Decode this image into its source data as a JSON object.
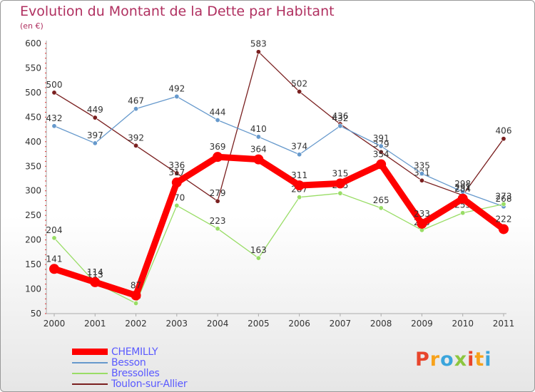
{
  "title": "Evolution du Montant de la Dette par Habitant",
  "unit": "(en €)",
  "logo": {
    "letters": [
      "P",
      "r",
      "o",
      "x",
      "i",
      "t",
      "i"
    ],
    "colors": [
      "#e8452c",
      "#f7a21b",
      "#3ba5dc",
      "#8cc63f",
      "#e8452c",
      "#f7a21b",
      "#3ba5dc"
    ]
  },
  "chart_data": {
    "type": "line",
    "title": "Evolution du Montant de la Dette par Habitant",
    "ylabel": "(en €)",
    "ylim": [
      50,
      600
    ],
    "yticks": [
      50,
      100,
      150,
      200,
      250,
      300,
      350,
      400,
      450,
      500,
      550,
      600
    ],
    "x": [
      "2000",
      "2001",
      "2002",
      "2003",
      "2004",
      "2005",
      "2006",
      "2007",
      "2008",
      "2009",
      "2010",
      "2011"
    ],
    "grid": false,
    "legend_position": "bottom-left",
    "series": [
      {
        "name": "CHEMILLY",
        "color": "#ff0000",
        "values": [
          141,
          114,
          87,
          317,
          369,
          364,
          311,
          315,
          354,
          233,
          284,
          222
        ]
      },
      {
        "name": "Besson",
        "color": "#6699cc",
        "values": [
          432,
          397,
          467,
          492,
          444,
          410,
          374,
          432,
          391,
          335,
          298,
          268
        ]
      },
      {
        "name": "Bressolles",
        "color": "#99dd66",
        "values": [
          204,
          113,
          71,
          270,
          223,
          163,
          287,
          295,
          265,
          220,
          255,
          273
        ]
      },
      {
        "name": "Toulon-sur-Allier",
        "color": "#7a2020",
        "values": [
          500,
          449,
          392,
          336,
          279,
          583,
          502,
          436,
          379,
          321,
          291,
          406
        ]
      }
    ]
  }
}
